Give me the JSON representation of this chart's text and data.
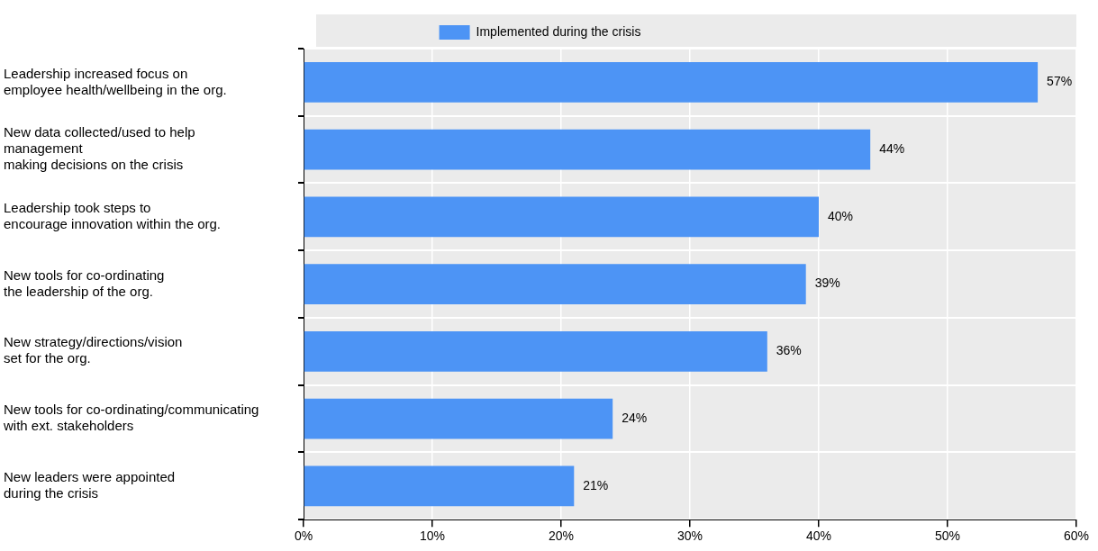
{
  "chart_data": {
    "type": "bar",
    "orientation": "horizontal",
    "categories": [
      "Leadership increased focus on\nemployee health/wellbeing in the org.",
      "New data collected/used to help\nmanagement\nmaking decisions on the crisis",
      "Leadership took steps to\nencourage innovation within the org.",
      "New tools for co-ordinating\nthe leadership of the org.",
      "New strategy/directions/vision\nset for the org.",
      "New tools for co-ordinating/communicating\nwith ext. stakeholders",
      "New leaders were appointed\nduring the crisis"
    ],
    "series": [
      {
        "name": "Implemented during the crisis",
        "color": "#4d94f5",
        "values": [
          57,
          44,
          40,
          39,
          36,
          24,
          21
        ],
        "value_labels": [
          "57%",
          "44%",
          "40%",
          "39%",
          "36%",
          "24%",
          "21%"
        ]
      }
    ],
    "xlim": [
      0,
      60
    ],
    "xticks": [
      {
        "value": 0,
        "label": "0%"
      },
      {
        "value": 10,
        "label": "10%"
      },
      {
        "value": 20,
        "label": "20%"
      },
      {
        "value": 30,
        "label": "30%"
      },
      {
        "value": 40,
        "label": "40%"
      },
      {
        "value": 50,
        "label": "50%"
      },
      {
        "value": 60,
        "label": "60%"
      }
    ],
    "grid": true,
    "legend": "top"
  }
}
